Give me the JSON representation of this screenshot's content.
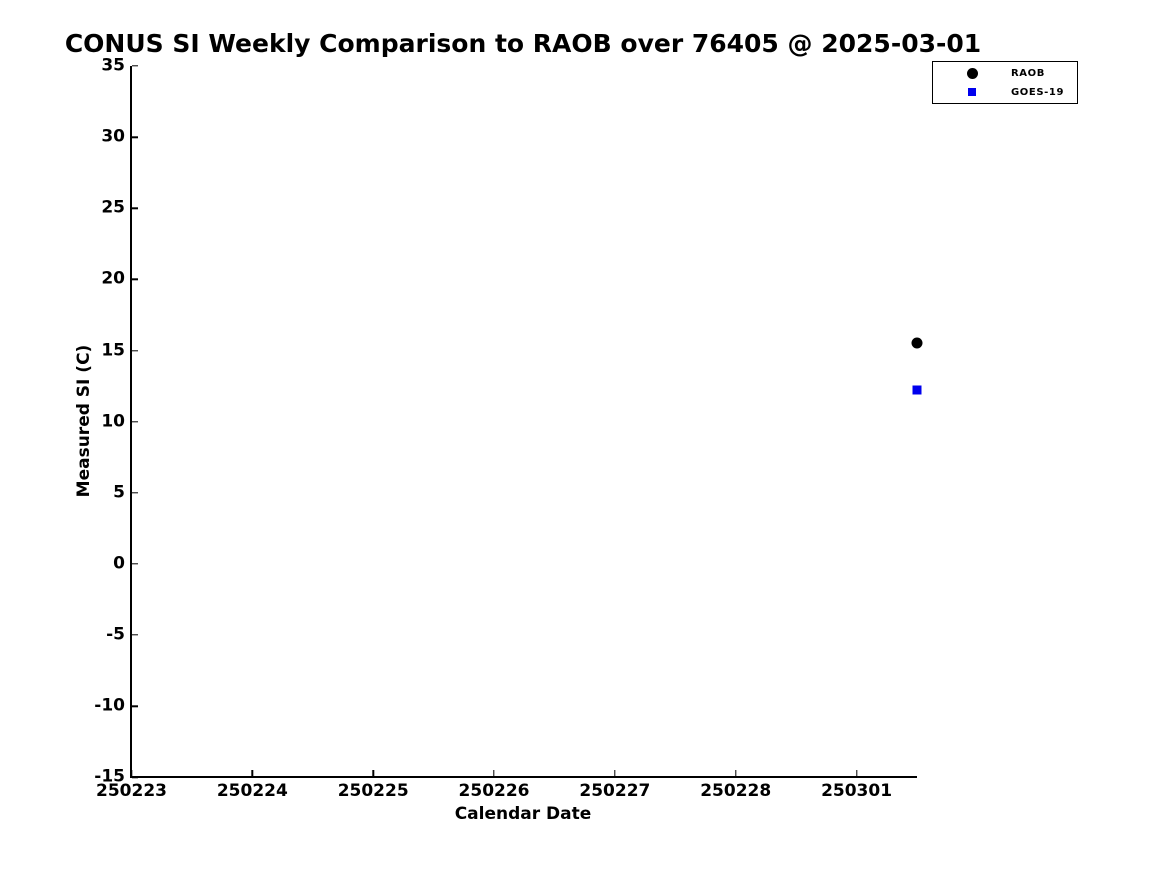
{
  "chart_data": {
    "type": "scatter",
    "title": "CONUS SI Weekly Comparison to RAOB over 76405 @ 2025-03-01",
    "xlabel": "Calendar Date",
    "ylabel": "Measured SI (C)",
    "x_tick_labels": [
      "250223",
      "250224",
      "250225",
      "250226",
      "250227",
      "250228",
      "250301"
    ],
    "x_tick_positions": [
      0,
      1,
      2,
      3,
      4,
      5,
      6
    ],
    "xlim_days": [
      0,
      6.5
    ],
    "ylim": [
      -15,
      35
    ],
    "y_ticks": [
      -15,
      -10,
      -5,
      0,
      5,
      10,
      15,
      20,
      25,
      30,
      35
    ],
    "grid": false,
    "legend_position": "top-right",
    "series": [
      {
        "name": "RAOB",
        "marker": "circle",
        "color": "#000000",
        "points": [
          {
            "x": 6.5,
            "y": 15.5
          }
        ]
      },
      {
        "name": "GOES-19",
        "marker": "square",
        "color": "#0000ee",
        "points": [
          {
            "x": 6.5,
            "y": 12.2
          }
        ]
      }
    ]
  }
}
